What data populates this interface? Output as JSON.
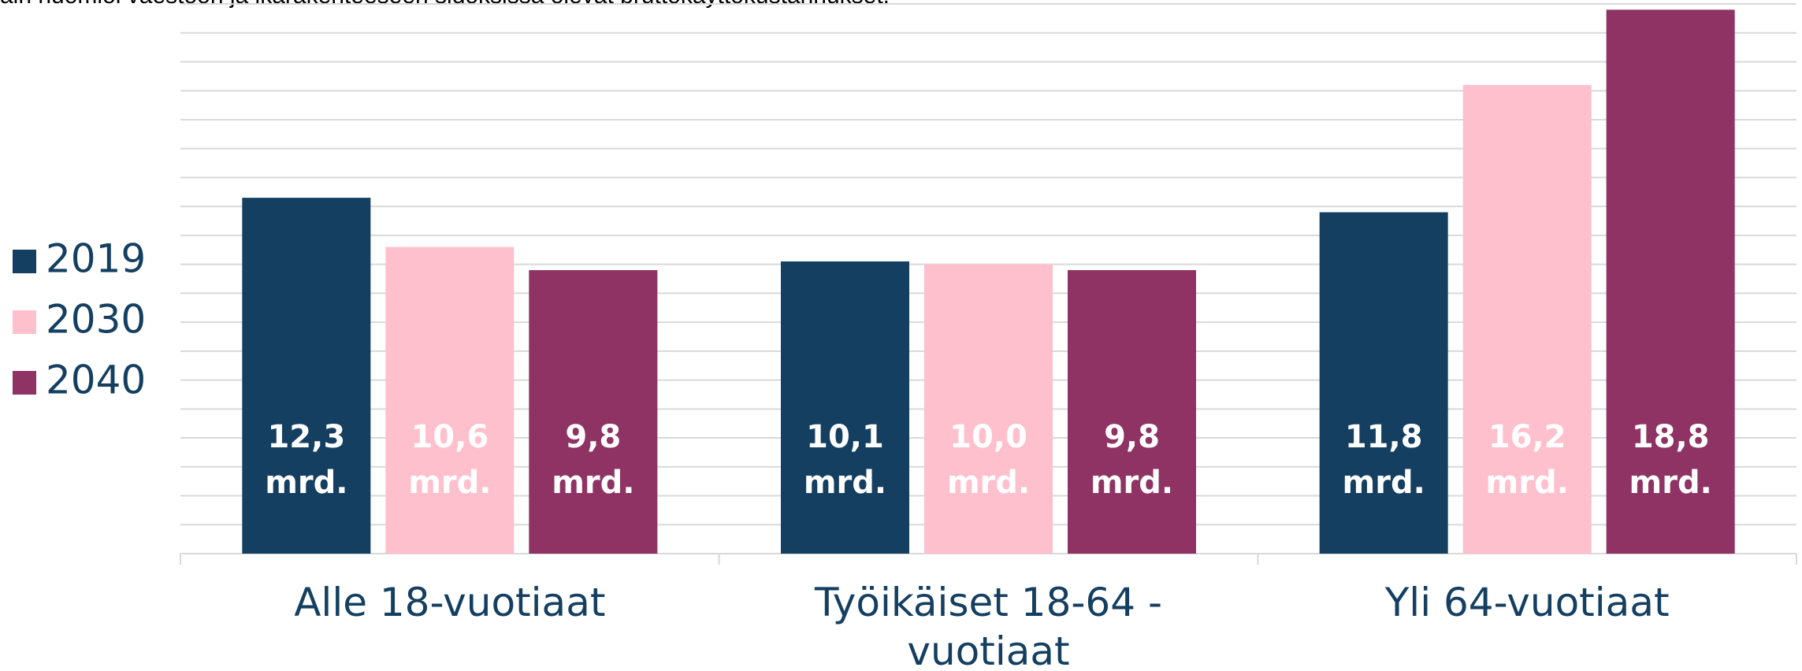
{
  "chart_data": {
    "type": "bar",
    "subtitle": "äin huomioi väestöön ja ikärakenteeseen sidoksissa olevat bruttokäyttökustannukset.",
    "categories": [
      "Alle 18-vuotiaat",
      "Työikäiset 18-64 - vuotiaat",
      "Yli 64-vuotiaat"
    ],
    "series": [
      {
        "name": "2019",
        "color": "#143f61",
        "values": [
          12.3,
          10.1,
          11.8
        ],
        "value_labels": [
          "12,3 mrd.",
          "10,1 mrd.",
          "11,8 mrd."
        ]
      },
      {
        "name": "2030",
        "color": "#ffc0ce",
        "values": [
          10.6,
          10.0,
          16.2
        ],
        "value_labels": [
          "10,6 mrd.",
          "10,0 mrd.",
          "16,2 mrd."
        ]
      },
      {
        "name": "2040",
        "color": "#8e3363",
        "values": [
          9.8,
          9.8,
          18.8
        ],
        "value_labels": [
          "9,8 mrd.",
          "9,8 mrd.",
          "18,8 mrd."
        ]
      }
    ],
    "ylim": [
      0,
      19
    ],
    "yticks": [
      1,
      2,
      3,
      4,
      5,
      6,
      7,
      8,
      9,
      10,
      11,
      12,
      13,
      14,
      15,
      16,
      17,
      18,
      19
    ],
    "grid": true,
    "legend": "left"
  }
}
